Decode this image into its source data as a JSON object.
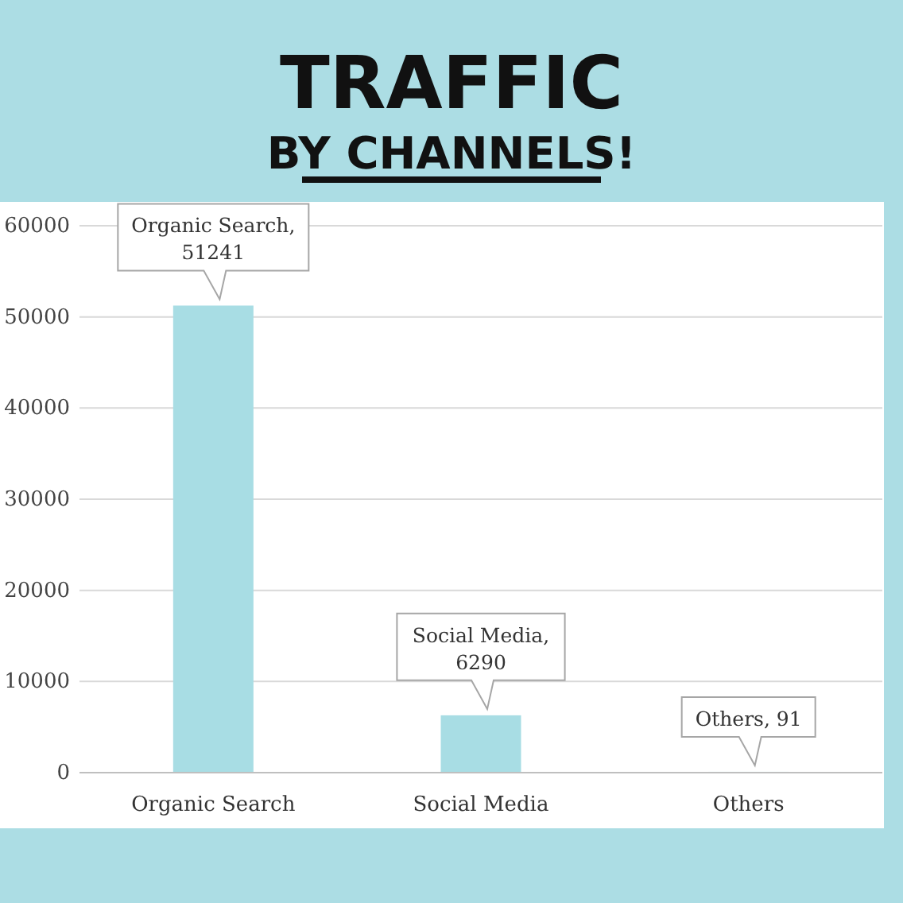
{
  "chart_data": {
    "type": "bar",
    "title": "TRAFFIC",
    "subtitle": "BY CHANNELS!",
    "categories": [
      "Organic Search",
      "Social Media",
      "Others"
    ],
    "values": [
      51241,
      6290,
      91
    ],
    "color": "#a8dde4",
    "value_labels": [
      "Organic Search, 51241",
      "Social Media, 6290",
      "Others, 91"
    ],
    "ylim": [
      0,
      60000
    ],
    "yticks": [
      0,
      10000,
      20000,
      30000,
      40000,
      50000,
      60000
    ],
    "grid": "y"
  }
}
